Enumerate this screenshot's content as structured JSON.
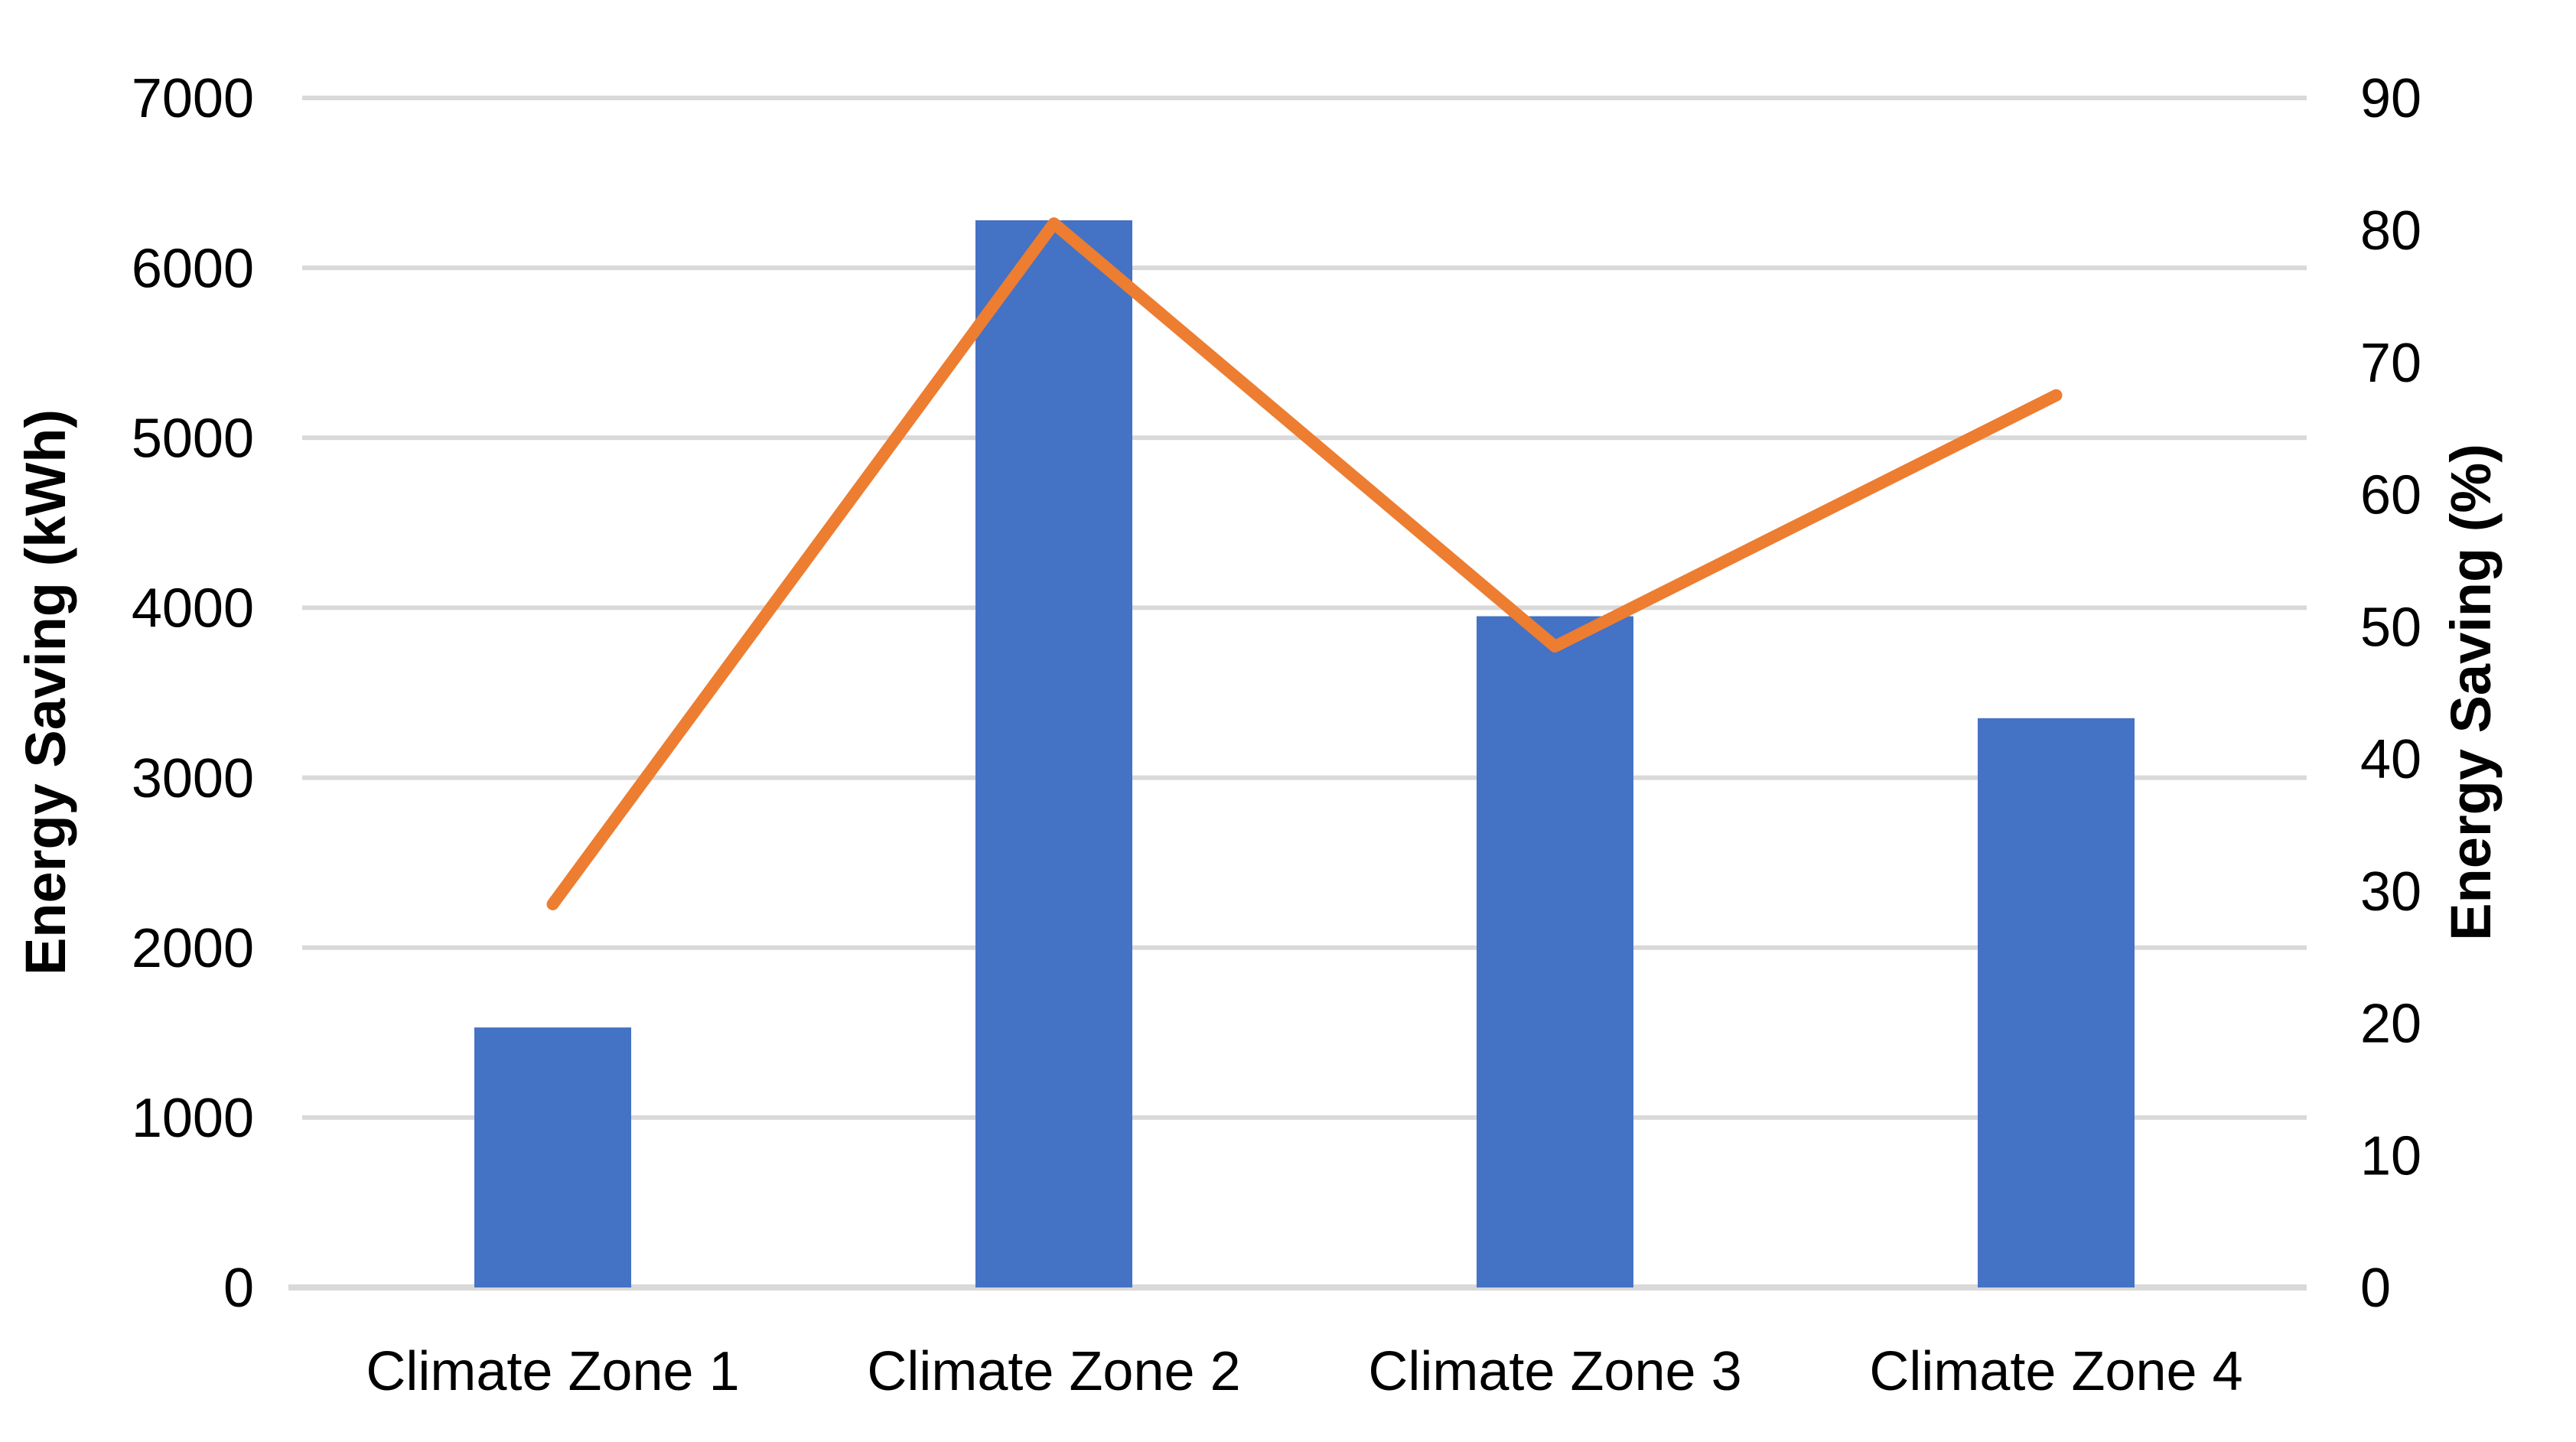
{
  "chart_data": {
    "type": "combo",
    "subtype": [
      "bar",
      "line"
    ],
    "title": "",
    "legend_position": "none",
    "grid": "horizontal",
    "categories": [
      "Climate Zone 1",
      "Climate Zone 2",
      "Climate Zone 3",
      "Climate Zone 4"
    ],
    "series": [
      {
        "name": "Energy Saving (kWh)",
        "type": "bar",
        "axis": "left",
        "color": "#4472C4",
        "values": [
          1530,
          6280,
          3950,
          3350
        ]
      },
      {
        "name": "Energy Saving (%)",
        "type": "line",
        "axis": "right",
        "color": "#ED7D31",
        "values": [
          29,
          80.5,
          48.5,
          67.5
        ]
      }
    ],
    "left_axis": {
      "label": "Energy Saving (kWh)",
      "min": 0,
      "max": 7000,
      "step": 1000,
      "ticks": [
        "0",
        "1000",
        "2000",
        "3000",
        "4000",
        "5000",
        "6000",
        "7000"
      ]
    },
    "right_axis": {
      "label": "Energy Saving (%)",
      "min": 0,
      "max": 90,
      "step": 10,
      "ticks": [
        "0",
        "10",
        "20",
        "30",
        "40",
        "50",
        "60",
        "70",
        "80",
        "90"
      ]
    },
    "colors": {
      "gridline": "#D9D9D9",
      "baseline": "#D9D9D9",
      "text": "#000000",
      "background": "#FFFFFF"
    }
  }
}
